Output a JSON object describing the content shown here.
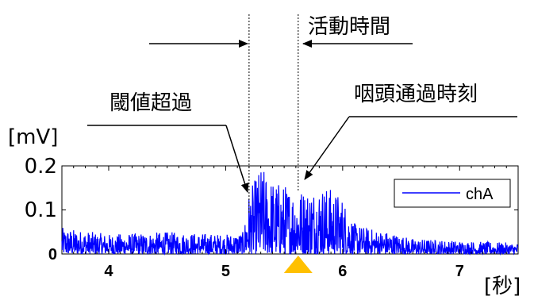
{
  "chart_data": {
    "type": "line",
    "title": "",
    "xlabel": "[秒]",
    "ylabel": "[mV]",
    "xlim": [
      3.6,
      7.5
    ],
    "ylim": [
      0,
      0.2
    ],
    "x_ticks": [
      4,
      5,
      6,
      7
    ],
    "x_tick_labels": [
      "4",
      "5",
      "6",
      "7"
    ],
    "y_ticks": [
      0,
      0.1,
      0.2
    ],
    "y_tick_labels": [
      "0",
      "0.1",
      "0.2"
    ],
    "legend_position": "top-right",
    "grid": false,
    "series": [
      {
        "name": "chA",
        "color": "#0000ff",
        "envelope": {
          "x": [
            3.6,
            4.0,
            4.5,
            5.0,
            5.15,
            5.2,
            5.3,
            5.4,
            5.5,
            5.6,
            5.7,
            5.8,
            5.9,
            6.0,
            6.1,
            6.2,
            6.4,
            6.6,
            7.0,
            7.5
          ],
          "y_max": [
            0.06,
            0.045,
            0.05,
            0.045,
            0.05,
            0.14,
            0.2,
            0.17,
            0.16,
            0.15,
            0.15,
            0.16,
            0.15,
            0.13,
            0.07,
            0.06,
            0.05,
            0.035,
            0.03,
            0.025
          ]
        }
      }
    ],
    "annotations": {
      "threshold_label": "閾値超過",
      "threshold_time": 5.2,
      "pharynx_label": "咽頭通過時刻",
      "pharynx_time": 5.62,
      "activity_label": "活動時間"
    }
  },
  "colors": {
    "signal": "#0000ff",
    "marker": "#ffc000"
  }
}
